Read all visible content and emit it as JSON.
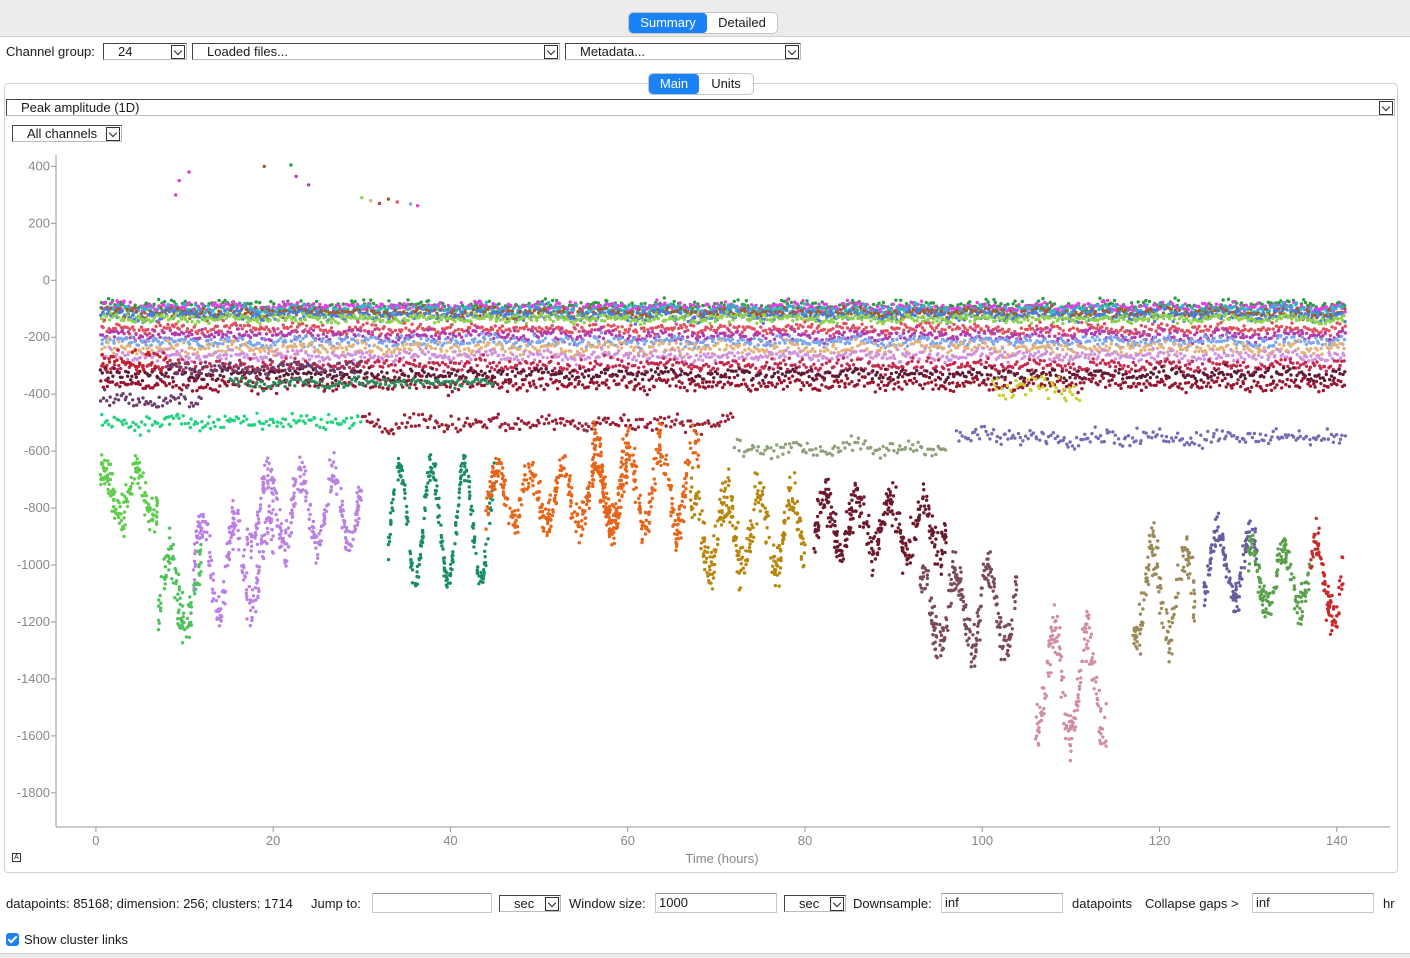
{
  "top_tabs": [
    {
      "label": "Summary",
      "active": true
    },
    {
      "label": "Detailed",
      "active": false
    }
  ],
  "controls": {
    "channel_group_label": "Channel group:",
    "channel_group_value": "24",
    "loaded_files": "Loaded files...",
    "metadata": "Metadata..."
  },
  "sub_tabs": [
    {
      "label": "Main",
      "active": true
    },
    {
      "label": "Units",
      "active": false
    }
  ],
  "plot": {
    "feature_select": "Peak amplitude (1D)",
    "channel_select": "All channels",
    "corner_icon": "font-scale-icon"
  },
  "chart_data": {
    "type": "scatter",
    "xlabel": "Time (hours)",
    "ylabel": "",
    "xlim": [
      -4.5,
      146
    ],
    "ylim": [
      -1920,
      440
    ],
    "x_ticks": [
      0,
      20,
      40,
      60,
      80,
      100,
      120,
      140
    ],
    "y_ticks": [
      400,
      200,
      0,
      -200,
      -400,
      -600,
      -800,
      -1000,
      -1200,
      -1400,
      -1600,
      -1800
    ],
    "grid": false,
    "series": [
      {
        "color": "#2a9a43",
        "segments": [
          [
            0.5,
            141,
            -90,
            15
          ]
        ]
      },
      {
        "color": "#e83de8",
        "segments": [
          [
            0.5,
            141,
            -95,
            14
          ]
        ]
      },
      {
        "color": "#2ab9c9",
        "segments": [
          [
            0.5,
            141,
            -105,
            14
          ]
        ]
      },
      {
        "color": "#a35a2b",
        "segments": [
          [
            0.5,
            141,
            -115,
            14
          ]
        ]
      },
      {
        "color": "#4a7be0",
        "segments": [
          [
            0.5,
            141,
            -125,
            14
          ]
        ]
      },
      {
        "color": "#8fd14a",
        "segments": [
          [
            0.5,
            141,
            -135,
            12
          ]
        ]
      },
      {
        "color": "#e0505e",
        "segments": [
          [
            0.5,
            141,
            -170,
            14
          ]
        ]
      },
      {
        "color": "#b13bb0",
        "segments": [
          [
            0.5,
            141,
            -195,
            16
          ]
        ]
      },
      {
        "color": "#7aa6ee",
        "segments": [
          [
            0.5,
            141,
            -215,
            15
          ]
        ]
      },
      {
        "color": "#e3b27a",
        "segments": [
          [
            0.5,
            141,
            -240,
            18
          ]
        ]
      },
      {
        "color": "#d090e0",
        "segments": [
          [
            0.5,
            141,
            -265,
            15
          ]
        ]
      },
      {
        "color": "#c42b4e",
        "segments": [
          [
            0.5,
            141,
            -300,
            18
          ]
        ]
      },
      {
        "color": "#5c1a33",
        "segments": [
          [
            0.5,
            141,
            -330,
            16
          ]
        ]
      },
      {
        "color": "#99162e",
        "segments": [
          [
            0.5,
            141,
            -365,
            18
          ]
        ]
      },
      {
        "color": "#2c8a5a",
        "segments": [
          [
            15,
            45,
            -360,
            14
          ]
        ]
      },
      {
        "color": "#6b3f6b",
        "segments": [
          [
            0.5,
            12,
            -420,
            22
          ],
          [
            8,
            30,
            -310,
            20
          ]
        ]
      },
      {
        "color": "#9a2236",
        "segments": [
          [
            30,
            72,
            -500,
            22
          ]
        ]
      },
      {
        "color": "#8da07a",
        "segments": [
          [
            72,
            96,
            -590,
            22
          ]
        ]
      },
      {
        "color": "#7a6ab4",
        "segments": [
          [
            97,
            141,
            -550,
            22
          ]
        ]
      },
      {
        "color": "#23d280",
        "segments": [
          [
            0.5,
            30,
            -500,
            22
          ]
        ]
      },
      {
        "color": "#c8d02a",
        "segments": [
          [
            101,
            111,
            -380,
            30
          ]
        ]
      },
      {
        "color": "#c62020",
        "segments": [
          [
            0.5,
            8,
            -280,
            35
          ]
        ]
      }
    ],
    "wavy": [
      {
        "color": "#5fcc4c",
        "x0": 0.5,
        "x1": 7,
        "y": -750,
        "amp": 80,
        "noise": 50
      },
      {
        "color": "#4fc25b",
        "x0": 7,
        "x1": 12,
        "y": -1100,
        "amp": 120,
        "noise": 70
      },
      {
        "color": "#bb7fe6",
        "x0": 11,
        "x1": 20,
        "y": -1000,
        "amp": 150,
        "noise": 60
      },
      {
        "color": "#b884e0",
        "x0": 17,
        "x1": 30,
        "y": -800,
        "amp": 120,
        "noise": 50
      },
      {
        "color": "#1a8c66",
        "x0": 33,
        "x1": 45,
        "y": -850,
        "amp": 200,
        "noise": 40
      },
      {
        "color": "#e86418",
        "x0": 44,
        "x1": 60,
        "y": -760,
        "amp": 90,
        "noise": 50
      },
      {
        "color": "#e86418",
        "x0": 56,
        "x1": 68,
        "y": -720,
        "amp": 150,
        "noise": 60
      },
      {
        "color": "#b8860b",
        "x0": 67,
        "x1": 80,
        "y": -880,
        "amp": 130,
        "noise": 70
      },
      {
        "color": "#6a1a2a",
        "x0": 81,
        "x1": 96,
        "y": -860,
        "amp": 90,
        "noise": 60
      },
      {
        "color": "#7a4a5c",
        "x0": 93,
        "x1": 104,
        "y": -1150,
        "amp": 130,
        "noise": 60
      },
      {
        "color": "#cf8ea4",
        "x0": 106,
        "x1": 114,
        "y": -1420,
        "amp": 180,
        "noise": 70
      },
      {
        "color": "#9c8a5a",
        "x0": 117,
        "x1": 124,
        "y": -1100,
        "amp": 160,
        "noise": 70
      },
      {
        "color": "#6a5aa0",
        "x0": 125,
        "x1": 131,
        "y": -1000,
        "amp": 120,
        "noise": 50
      },
      {
        "color": "#5aa04a",
        "x0": 130,
        "x1": 137,
        "y": -1050,
        "amp": 100,
        "noise": 50
      },
      {
        "color": "#c82a2a",
        "x0": 137,
        "x1": 141,
        "y": -1050,
        "amp": 140,
        "noise": 60
      }
    ],
    "outliers": [
      {
        "x": 9,
        "y": 300,
        "color": "#d83ad8"
      },
      {
        "x": 9.4,
        "y": 350,
        "color": "#d83ad8"
      },
      {
        "x": 10.5,
        "y": 380,
        "color": "#d83ad8"
      },
      {
        "x": 19,
        "y": 400,
        "color": "#a35a2b"
      },
      {
        "x": 22,
        "y": 405,
        "color": "#2a9a43"
      },
      {
        "x": 22.6,
        "y": 365,
        "color": "#b13bb0"
      },
      {
        "x": 24,
        "y": 335,
        "color": "#b13bb0"
      },
      {
        "x": 30,
        "y": 290,
        "color": "#8fd14a"
      },
      {
        "x": 31,
        "y": 280,
        "color": "#e3b27a"
      },
      {
        "x": 32,
        "y": 270,
        "color": "#c42b4e"
      },
      {
        "x": 33,
        "y": 285,
        "color": "#a35a2b"
      },
      {
        "x": 34,
        "y": 275,
        "color": "#e0505e"
      },
      {
        "x": 35.5,
        "y": 268,
        "color": "#7aa6ee"
      },
      {
        "x": 36.3,
        "y": 262,
        "color": "#e83de8"
      }
    ]
  },
  "status": {
    "summary": "datapoints: 85168; dimension: 256; clusters: 1714",
    "jump_label": "Jump to:",
    "jump_value": "",
    "jump_unit": "sec",
    "window_label": "Window size:",
    "window_value": "1000",
    "window_unit": "sec",
    "downsample_label": "Downsample:",
    "downsample_value": "inf",
    "downsample_unit": "datapoints",
    "collapse_label": "Collapse gaps >",
    "collapse_value": "inf",
    "collapse_unit": "hr",
    "show_links_label": "Show cluster links",
    "show_links_checked": true
  }
}
